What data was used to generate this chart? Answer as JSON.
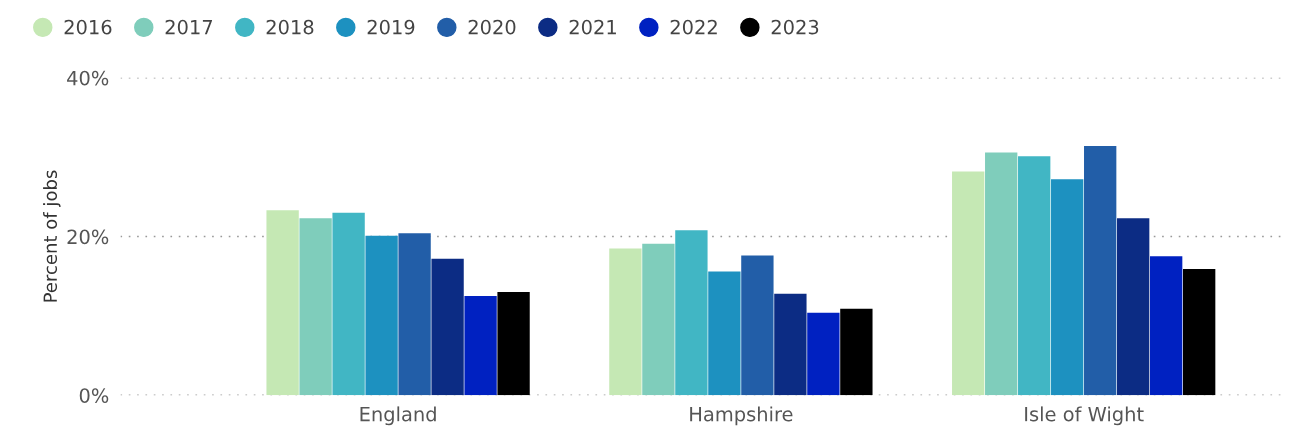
{
  "chart_data": {
    "type": "bar",
    "ylabel": "Percent of jobs",
    "categories": [
      "England",
      "Hampshire",
      "Isle of Wight"
    ],
    "series": [
      {
        "name": "2016",
        "color": "#c5e8b4",
        "values": [
          23.3,
          18.5,
          28.2
        ]
      },
      {
        "name": "2017",
        "color": "#7fcdbb",
        "values": [
          22.3,
          19.1,
          30.6
        ]
      },
      {
        "name": "2018",
        "color": "#41b6c4",
        "values": [
          23.0,
          20.8,
          30.1
        ]
      },
      {
        "name": "2019",
        "color": "#1d91c0",
        "values": [
          20.1,
          15.6,
          27.2
        ]
      },
      {
        "name": "2020",
        "color": "#225ea8",
        "values": [
          20.4,
          17.6,
          31.4
        ]
      },
      {
        "name": "2021",
        "color": "#0c2c84",
        "values": [
          17.2,
          12.8,
          22.3
        ]
      },
      {
        "name": "2022",
        "color": "#0021c1",
        "values": [
          12.5,
          10.4,
          17.5
        ]
      },
      {
        "name": "2023",
        "color": "#000000",
        "values": [
          13.0,
          10.9,
          15.9
        ]
      }
    ],
    "ylim": [
      0,
      40
    ],
    "yticks": [
      {
        "value": 0,
        "label": "0%"
      },
      {
        "value": 20,
        "label": "20%"
      },
      {
        "value": 40,
        "label": "40%"
      }
    ],
    "grid": "y",
    "legend": "top left"
  }
}
